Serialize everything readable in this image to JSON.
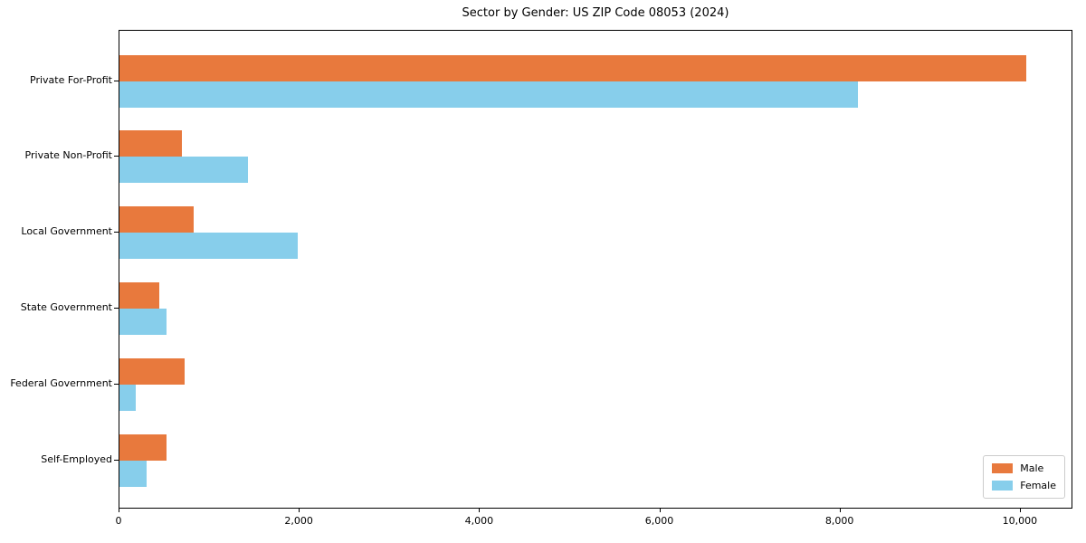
{
  "chart_data": {
    "type": "bar",
    "orientation": "horizontal",
    "title": "Sector by Gender: US ZIP Code 08053 (2024)",
    "categories": [
      "Private For-Profit",
      "Private Non-Profit",
      "Local Government",
      "State Government",
      "Federal Government",
      "Self-Employed"
    ],
    "series": [
      {
        "name": "Male",
        "color": "#E8793D",
        "values": [
          10080,
          690,
          820,
          440,
          720,
          520
        ]
      },
      {
        "name": "Female",
        "color": "#87CEEB",
        "values": [
          8210,
          1430,
          1980,
          520,
          180,
          300
        ]
      }
    ],
    "xlabel": "",
    "ylabel": "",
    "xlim": [
      0,
      10584
    ],
    "xticks": [
      0,
      2000,
      4000,
      6000,
      8000,
      10000
    ],
    "xtick_labels": [
      "0",
      "2,000",
      "4,000",
      "6,000",
      "8,000",
      "10,000"
    ],
    "grid": false,
    "legend_position": "lower right"
  }
}
